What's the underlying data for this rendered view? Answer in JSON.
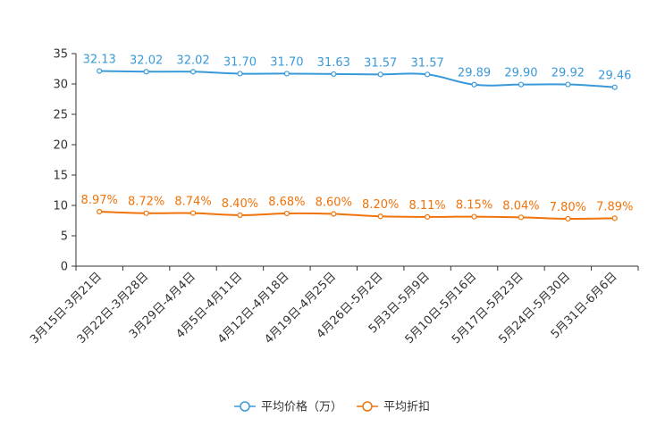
{
  "chart_data": {
    "type": "line",
    "title": "",
    "xlabel": "",
    "ylabel": "",
    "ylim": [
      0,
      35
    ],
    "yticks": [
      0,
      5,
      10,
      15,
      20,
      25,
      30,
      35
    ],
    "grid": false,
    "legend_position": "bottom-center",
    "categories": [
      "3月15日-3月21日",
      "3月22日-3月28日",
      "3月29日-4月4日",
      "4月5日-4月11日",
      "4月12日-4月18日",
      "4月19日-4月25日",
      "4月26日-5月2日",
      "5月3日-5月9日",
      "5月10日-5月16日",
      "5月17日-5月23日",
      "5月24日-5月30日",
      "5月31日-6月6日"
    ],
    "series": [
      {
        "name": "平均价格（万）",
        "color": "#3a9ad9",
        "values": [
          32.13,
          32.02,
          32.02,
          31.7,
          31.7,
          31.63,
          31.57,
          31.57,
          29.89,
          29.9,
          29.92,
          29.46
        ],
        "labels": [
          "32.13",
          "32.02",
          "32.02",
          "31.70",
          "31.70",
          "31.63",
          "31.57",
          "31.57",
          "29.89",
          "29.90",
          "29.92",
          "29.46"
        ]
      },
      {
        "name": "平均折扣",
        "color": "#f0730a",
        "values": [
          8.97,
          8.72,
          8.74,
          8.4,
          8.68,
          8.6,
          8.2,
          8.11,
          8.15,
          8.04,
          7.8,
          7.89
        ],
        "labels": [
          "8.97%",
          "8.72%",
          "8.74%",
          "8.40%",
          "8.68%",
          "8.60%",
          "8.20%",
          "8.11%",
          "8.15%",
          "8.04%",
          "7.80%",
          "7.89%"
        ]
      }
    ]
  }
}
